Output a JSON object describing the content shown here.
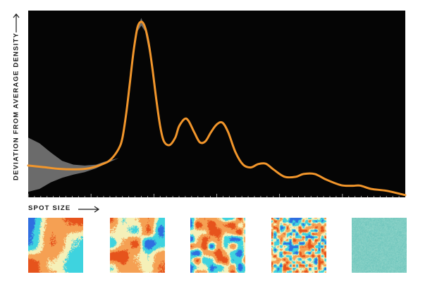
{
  "chart_data": {
    "type": "line",
    "title": "",
    "ylabel": "DEVIATION FROM AVERAGE DENSITY",
    "xlabel": "SPOT SIZE",
    "x_axis": "unlabeled, direction shown by arrow",
    "y_axis": "unlabeled, direction shown by arrow",
    "ylim": [
      0,
      100
    ],
    "xlim": [
      0,
      100
    ],
    "grid": false,
    "background": "#050505",
    "series": [
      {
        "color": "#f2962b",
        "points": [
          [
            0,
            17
          ],
          [
            4,
            16.2
          ],
          [
            8,
            15.3
          ],
          [
            12,
            15
          ],
          [
            16,
            15.5
          ],
          [
            20,
            18
          ],
          [
            22,
            20.5
          ],
          [
            24,
            26
          ],
          [
            25,
            32
          ],
          [
            26,
            45
          ],
          [
            27,
            62
          ],
          [
            28,
            79
          ],
          [
            29,
            91
          ],
          [
            30,
            94
          ],
          [
            31,
            91
          ],
          [
            32,
            82
          ],
          [
            33,
            68
          ],
          [
            34,
            52
          ],
          [
            35,
            38
          ],
          [
            36,
            30
          ],
          [
            37.5,
            28
          ],
          [
            39,
            32
          ],
          [
            40,
            38
          ],
          [
            41.5,
            42
          ],
          [
            42.5,
            41
          ],
          [
            44,
            35
          ],
          [
            45.5,
            29.5
          ],
          [
            47,
            30
          ],
          [
            48.5,
            35
          ],
          [
            50,
            39
          ],
          [
            51.5,
            40
          ],
          [
            53,
            35
          ],
          [
            55,
            24
          ],
          [
            57,
            17.5
          ],
          [
            59,
            16
          ],
          [
            61,
            17.8
          ],
          [
            63,
            18
          ],
          [
            65,
            15
          ],
          [
            68,
            11
          ],
          [
            71,
            11
          ],
          [
            73,
            12.5
          ],
          [
            76,
            12.5
          ],
          [
            79,
            9.5
          ],
          [
            83,
            6.5
          ],
          [
            86,
            6.2
          ],
          [
            88,
            6.3
          ],
          [
            91,
            4.5
          ],
          [
            95,
            3.5
          ],
          [
            100,
            1.2
          ]
        ]
      }
    ],
    "uncertainty_band": {
      "color": "#6b6b6b",
      "upper": [
        [
          0,
          32
        ],
        [
          3,
          29
        ],
        [
          6,
          24
        ],
        [
          9,
          19.5
        ],
        [
          12,
          17.5
        ],
        [
          15,
          17
        ],
        [
          18,
          17.5
        ],
        [
          20,
          19
        ],
        [
          24,
          21
        ],
        [
          26,
          45
        ],
        [
          28,
          78
        ],
        [
          29,
          91
        ],
        [
          30,
          96
        ],
        [
          31,
          91
        ],
        [
          33,
          68
        ],
        [
          36,
          30
        ]
      ],
      "lower": [
        [
          0,
          3
        ],
        [
          3,
          4.5
        ],
        [
          6,
          8
        ],
        [
          9,
          10.5
        ],
        [
          12,
          12.2
        ],
        [
          15,
          13.5
        ],
        [
          18,
          15.5
        ],
        [
          20,
          17.5
        ],
        [
          24,
          21
        ],
        [
          26,
          45
        ],
        [
          28,
          78
        ],
        [
          29,
          89
        ],
        [
          30,
          92
        ],
        [
          31,
          89
        ],
        [
          33,
          68
        ],
        [
          36,
          30
        ]
      ]
    },
    "panels": [
      {
        "name": "large-spots",
        "palette": [
          "#3ed3df",
          "#f5f0b8",
          "#f5a053",
          "#e6531c",
          "#2f6ee0"
        ]
      },
      {
        "name": "medium-large-spots",
        "palette": [
          "#3ed3df",
          "#f5f0b8",
          "#f5a053",
          "#e6531c",
          "#2f6ee0"
        ]
      },
      {
        "name": "medium-spots",
        "palette": [
          "#3ed3df",
          "#f5f0b8",
          "#f5a053",
          "#e6531c",
          "#2f6ee0"
        ]
      },
      {
        "name": "small-spots",
        "palette": [
          "#3ed3df",
          "#f5f0b8",
          "#f5a053",
          "#e6531c",
          "#2f6ee0"
        ]
      },
      {
        "name": "uniform-noise",
        "palette": [
          "#6fc6bd",
          "#8fd4c9"
        ]
      }
    ]
  },
  "labels": {
    "ylabel": "DEVIATION FROM AVERAGE DENSITY",
    "xlabel": "SPOT SIZE"
  }
}
